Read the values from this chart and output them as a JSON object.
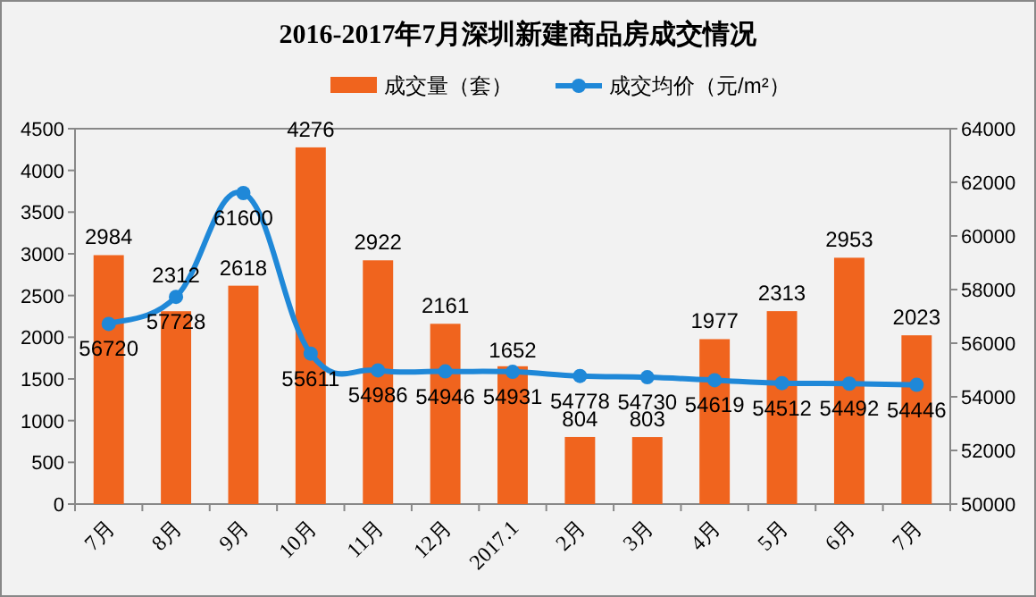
{
  "chart_data": {
    "type": "bar",
    "title": "2016-2017年7月深圳新建商品房成交情况",
    "categories": [
      "7月",
      "8月",
      "9月",
      "10月",
      "11月",
      "12月",
      "2017.1",
      "2月",
      "3月",
      "4月",
      "5月",
      "6月",
      "7月"
    ],
    "series": [
      {
        "name": "成交量（套）",
        "color": "#f0641e",
        "values": [
          2984,
          2312,
          2618,
          4276,
          2922,
          2161,
          1652,
          804,
          803,
          1977,
          2313,
          2953,
          2023
        ]
      },
      {
        "name": "成交均价（元/m²）",
        "type": "line",
        "axis": "y2",
        "color": "#1f88d8",
        "values": [
          56720,
          57728,
          61600,
          55611,
          54986,
          54946,
          54931,
          54778,
          54730,
          54619,
          54512,
          54492,
          54446
        ]
      }
    ],
    "ylim": [
      0,
      4500
    ],
    "yticks": [
      0,
      500,
      1000,
      1500,
      2000,
      2500,
      3000,
      3500,
      4000,
      4500
    ],
    "y2lim": [
      50000,
      64000
    ],
    "y2ticks": [
      50000,
      52000,
      54000,
      56000,
      58000,
      60000,
      62000,
      64000
    ],
    "data_labels": true,
    "legend": "top",
    "marker": "circle",
    "line_style": "solid"
  }
}
